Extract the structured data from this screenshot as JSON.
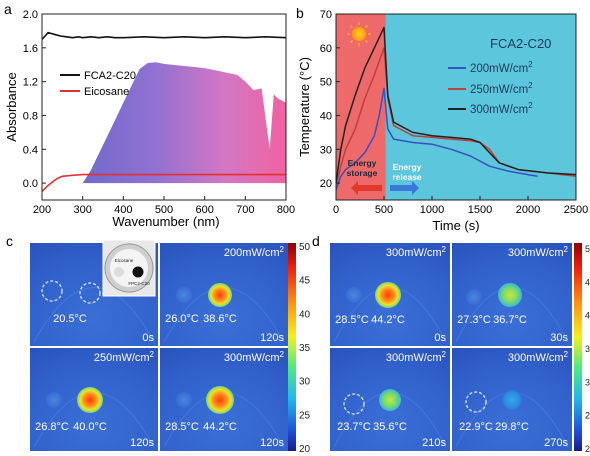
{
  "chart_data": [
    {
      "panel": "a",
      "type": "line",
      "xlabel": "Wavenumber (nm)",
      "ylabel": "Absorbance",
      "xlim": [
        200,
        800
      ],
      "ylim": [
        -0.2,
        2.0
      ],
      "xticks": [
        200,
        300,
        400,
        500,
        600,
        700,
        800
      ],
      "yticks": [
        0.0,
        0.4,
        0.8,
        1.2,
        1.6,
        2.0
      ],
      "ytick_labels": [
        "0.0",
        "0.4",
        "0.8",
        "1.2",
        "1.6",
        "2.0"
      ],
      "legend_position": "top-left",
      "series": [
        {
          "name": "FCA2-C20",
          "color": "#111111",
          "x": [
            200,
            215,
            230,
            245,
            260,
            275,
            290,
            300,
            320,
            340,
            360,
            380,
            400,
            450,
            500,
            550,
            600,
            650,
            700,
            750,
            800
          ],
          "y": [
            1.7,
            1.78,
            1.76,
            1.74,
            1.73,
            1.72,
            1.73,
            1.72,
            1.73,
            1.72,
            1.73,
            1.72,
            1.72,
            1.73,
            1.72,
            1.73,
            1.72,
            1.73,
            1.72,
            1.73,
            1.72
          ]
        },
        {
          "name": "Eicosane",
          "color": "#e03030",
          "x": [
            200,
            210,
            220,
            230,
            240,
            250,
            270,
            300,
            400,
            500,
            600,
            700,
            800
          ],
          "y": [
            -0.1,
            -0.05,
            -0.01,
            0.03,
            0.06,
            0.08,
            0.09,
            0.1,
            0.1,
            0.1,
            0.1,
            0.1,
            0.1
          ]
        }
      ],
      "spectrum_fill_note": "solar irradiance spectrum background",
      "spectrum": {
        "x": [
          300,
          320,
          340,
          360,
          380,
          400,
          420,
          440,
          460,
          480,
          500,
          520,
          540,
          560,
          580,
          600,
          620,
          640,
          660,
          680,
          700,
          720,
          740,
          760,
          770,
          780,
          800
        ],
        "y": [
          0.0,
          0.15,
          0.35,
          0.55,
          0.75,
          0.95,
          1.15,
          1.35,
          1.42,
          1.43,
          1.41,
          1.4,
          1.39,
          1.38,
          1.37,
          1.36,
          1.34,
          1.32,
          1.3,
          1.28,
          1.2,
          1.1,
          1.12,
          0.4,
          1.05,
          1.0,
          0.95
        ]
      }
    },
    {
      "panel": "b",
      "type": "line",
      "xlabel": "Time (s)",
      "ylabel": "Temperature (°C)",
      "xlim": [
        0,
        2500
      ],
      "ylim": [
        15,
        70
      ],
      "xticks": [
        0,
        500,
        1000,
        1500,
        2000,
        2500
      ],
      "yticks": [
        20,
        30,
        40,
        50,
        60,
        70
      ],
      "legend_title": "FCA2-C20",
      "legend_position": "right",
      "storage_label_1": "Energy",
      "storage_label_2": "storage",
      "release_label_1": "Energy",
      "release_label_2": "release",
      "storage_color": "#ee6a6a",
      "release_color": "#5cc6dc",
      "series": [
        {
          "name": "200mW/cm",
          "sup": "2",
          "color": "#3a4fc0",
          "x": [
            0,
            50,
            100,
            200,
            300,
            400,
            450,
            500,
            540,
            600,
            800,
            1000,
            1200,
            1400,
            1600,
            1800,
            2000,
            2100
          ],
          "y": [
            18,
            22,
            24,
            26,
            29,
            34,
            40,
            48,
            36,
            33,
            32,
            31.5,
            30,
            28,
            25,
            23.5,
            22.5,
            22
          ]
        },
        {
          "name": "250mW/cm",
          "sup": "2",
          "color": "#c0403a",
          "x": [
            0,
            50,
            100,
            200,
            300,
            400,
            450,
            500,
            540,
            600,
            800,
            1000,
            1200,
            1400,
            1500,
            1600,
            1700,
            1900,
            2200,
            2500
          ],
          "y": [
            19,
            25,
            30,
            36,
            45,
            52,
            56,
            60,
            45,
            37,
            34,
            33.5,
            33,
            32.5,
            32,
            30,
            26,
            24,
            23,
            22
          ]
        },
        {
          "name": "300mW/cm",
          "sup": "2",
          "color": "#222222",
          "x": [
            0,
            50,
            100,
            200,
            300,
            400,
            450,
            500,
            540,
            600,
            800,
            1000,
            1200,
            1400,
            1500,
            1600,
            1700,
            1900,
            2200,
            2500
          ],
          "y": [
            20,
            30,
            37,
            46,
            54,
            60,
            63,
            66,
            46,
            38,
            35,
            34,
            33.5,
            33,
            32,
            29,
            26,
            24,
            23,
            22.5
          ]
        }
      ]
    }
  ],
  "panel_c": {
    "label": "c",
    "colorbar_ticks": [
      "50",
      "45",
      "40",
      "35",
      "30",
      "25",
      "20"
    ],
    "inset_label_top": "Eicosane",
    "inset_label_bottom": "FPC2-C20",
    "cells": [
      {
        "header": "",
        "t1": "20.5°C",
        "t2": "",
        "time": "0s"
      },
      {
        "header": "200mW/cm",
        "sup": "2",
        "t1": "26.0°C",
        "t2": "38.6°C",
        "time": "120s"
      },
      {
        "header": "250mW/cm",
        "sup": "2",
        "t1": "26.8°C",
        "t2": "40.0°C",
        "time": "120s"
      },
      {
        "header": "300mW/cm",
        "sup": "2",
        "t1": "28.5°C",
        "t2": "44.2°C",
        "time": "120s"
      }
    ]
  },
  "panel_d": {
    "label": "d",
    "colorbar_ticks": [
      "5",
      "4",
      "4",
      "3",
      "3",
      "2",
      "2"
    ],
    "cells": [
      {
        "header": "300mW/cm",
        "sup": "2",
        "t1": "28.5°C",
        "t2": "44.2°C",
        "time": "0s"
      },
      {
        "header": "300mW/cm",
        "sup": "2",
        "t1": "27.3°C",
        "t2": "36.7°C",
        "time": "30s"
      },
      {
        "header": "300mW/cm",
        "sup": "2",
        "t1": "23.7°C",
        "t2": "35.6°C",
        "time": "210s"
      },
      {
        "header": "300mW/cm",
        "sup": "2",
        "t1": "22.9°C",
        "t2": "29.8°C",
        "time": "270s"
      }
    ]
  }
}
